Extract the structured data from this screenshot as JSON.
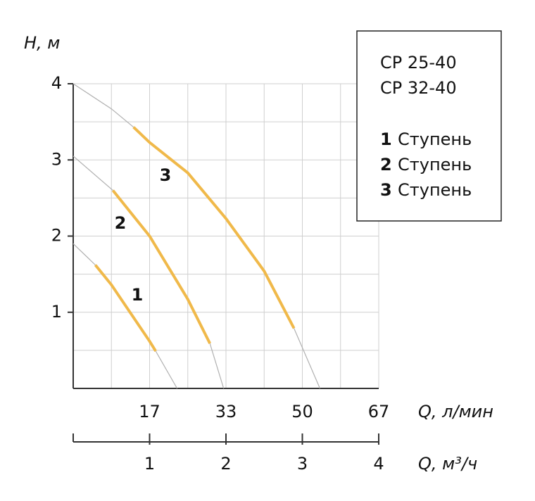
{
  "chart_data": {
    "type": "line",
    "y_label": "H, м",
    "x2_label": "Q, л/мин",
    "x_label": "Q, м³/ч",
    "xlim": [
      0,
      4
    ],
    "xticks": [
      1,
      2,
      3,
      4
    ],
    "x2lim": [
      0,
      66.67
    ],
    "x2ticks": [
      {
        "value": 16.67,
        "label": "17"
      },
      {
        "value": 33.33,
        "label": "33"
      },
      {
        "value": 50,
        "label": "50"
      },
      {
        "value": 66.67,
        "label": "67"
      }
    ],
    "ylim": [
      0,
      4
    ],
    "yticks": [
      1,
      2,
      3,
      4
    ],
    "xgrid": [
      0.5,
      1,
      1.5,
      2,
      2.5,
      3,
      3.5,
      4
    ],
    "ygrid": [
      0.5,
      1,
      1.5,
      2,
      2.5,
      3,
      3.5,
      4
    ],
    "models": [
      "CP 25-40",
      "CP 32-40"
    ],
    "curve_color": "#b0b0b0",
    "curves": [
      {
        "x": [
          0,
          0.29,
          0.5,
          1,
          1.08,
          1.36
        ],
        "values": [
          1.9,
          1.62,
          1.36,
          0.62,
          0.49,
          0
        ]
      },
      {
        "x": [
          0,
          0.52,
          1,
          1.5,
          1.79,
          1.97
        ],
        "values": [
          3.05,
          2.6,
          2.0,
          1.17,
          0.59,
          0
        ]
      },
      {
        "x": [
          0,
          0.5,
          0.79,
          1,
          1.5,
          2,
          2.5,
          2.89,
          3.23
        ],
        "values": [
          4,
          3.67,
          3.43,
          3.23,
          2.83,
          2.23,
          1.54,
          0.79,
          0
        ]
      }
    ],
    "series": [
      {
        "label": "1",
        "name": "Ступень",
        "color": "#f0b94a",
        "x": [
          0.29,
          0.5,
          1,
          1.08
        ],
        "values": [
          1.62,
          1.36,
          0.62,
          0.49
        ]
      },
      {
        "label": "2",
        "name": "Ступень",
        "color": "#f0b94a",
        "x": [
          0.52,
          1,
          1.5,
          1.79
        ],
        "values": [
          2.6,
          2.0,
          1.17,
          0.59
        ]
      },
      {
        "label": "3",
        "name": "Ступень",
        "color": "#f0b94a",
        "x": [
          0.79,
          1,
          1.5,
          2,
          2.5,
          2.89
        ],
        "values": [
          3.43,
          3.23,
          2.83,
          2.23,
          1.54,
          0.79
        ]
      }
    ]
  }
}
